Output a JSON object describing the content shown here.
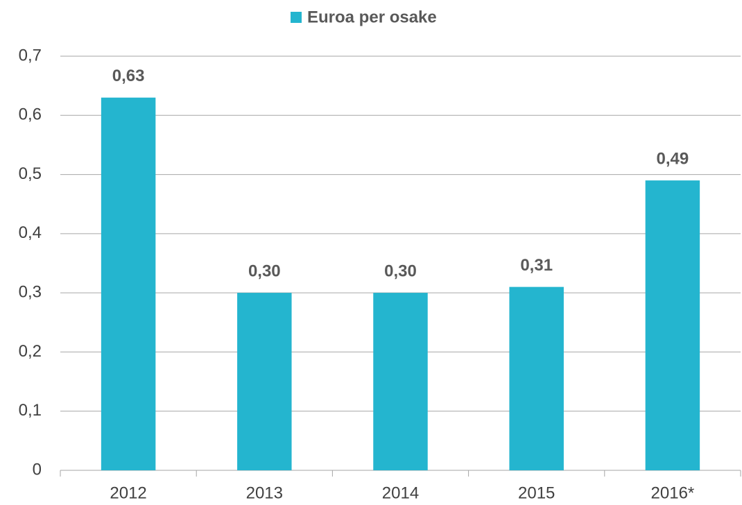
{
  "chart_data": {
    "type": "bar",
    "legend": "Euroa per osake",
    "categories": [
      "2012",
      "2013",
      "2014",
      "2015",
      "2016*"
    ],
    "series": [
      {
        "name": "Euroa per osake",
        "color": "#24b5cf",
        "values": [
          0.63,
          0.3,
          0.3,
          0.31,
          0.49
        ],
        "value_labels": [
          "0,63",
          "0,30",
          "0,30",
          "0,31",
          "0,49"
        ]
      }
    ],
    "ylim": [
      0,
      0.7
    ],
    "yticks": [
      0,
      {
        "value": 0.1,
        "label": "0,1"
      },
      {
        "value": 0.2,
        "label": "0,2"
      },
      {
        "value": 0.3,
        "label": "0,3"
      },
      {
        "value": 0.4,
        "label": "0,4"
      },
      {
        "value": 0.5,
        "label": "0,5"
      },
      {
        "value": 0.6,
        "label": "0,6"
      },
      {
        "value": 0.7,
        "label": "0,7"
      }
    ],
    "grid": true,
    "legend_position": "top"
  }
}
